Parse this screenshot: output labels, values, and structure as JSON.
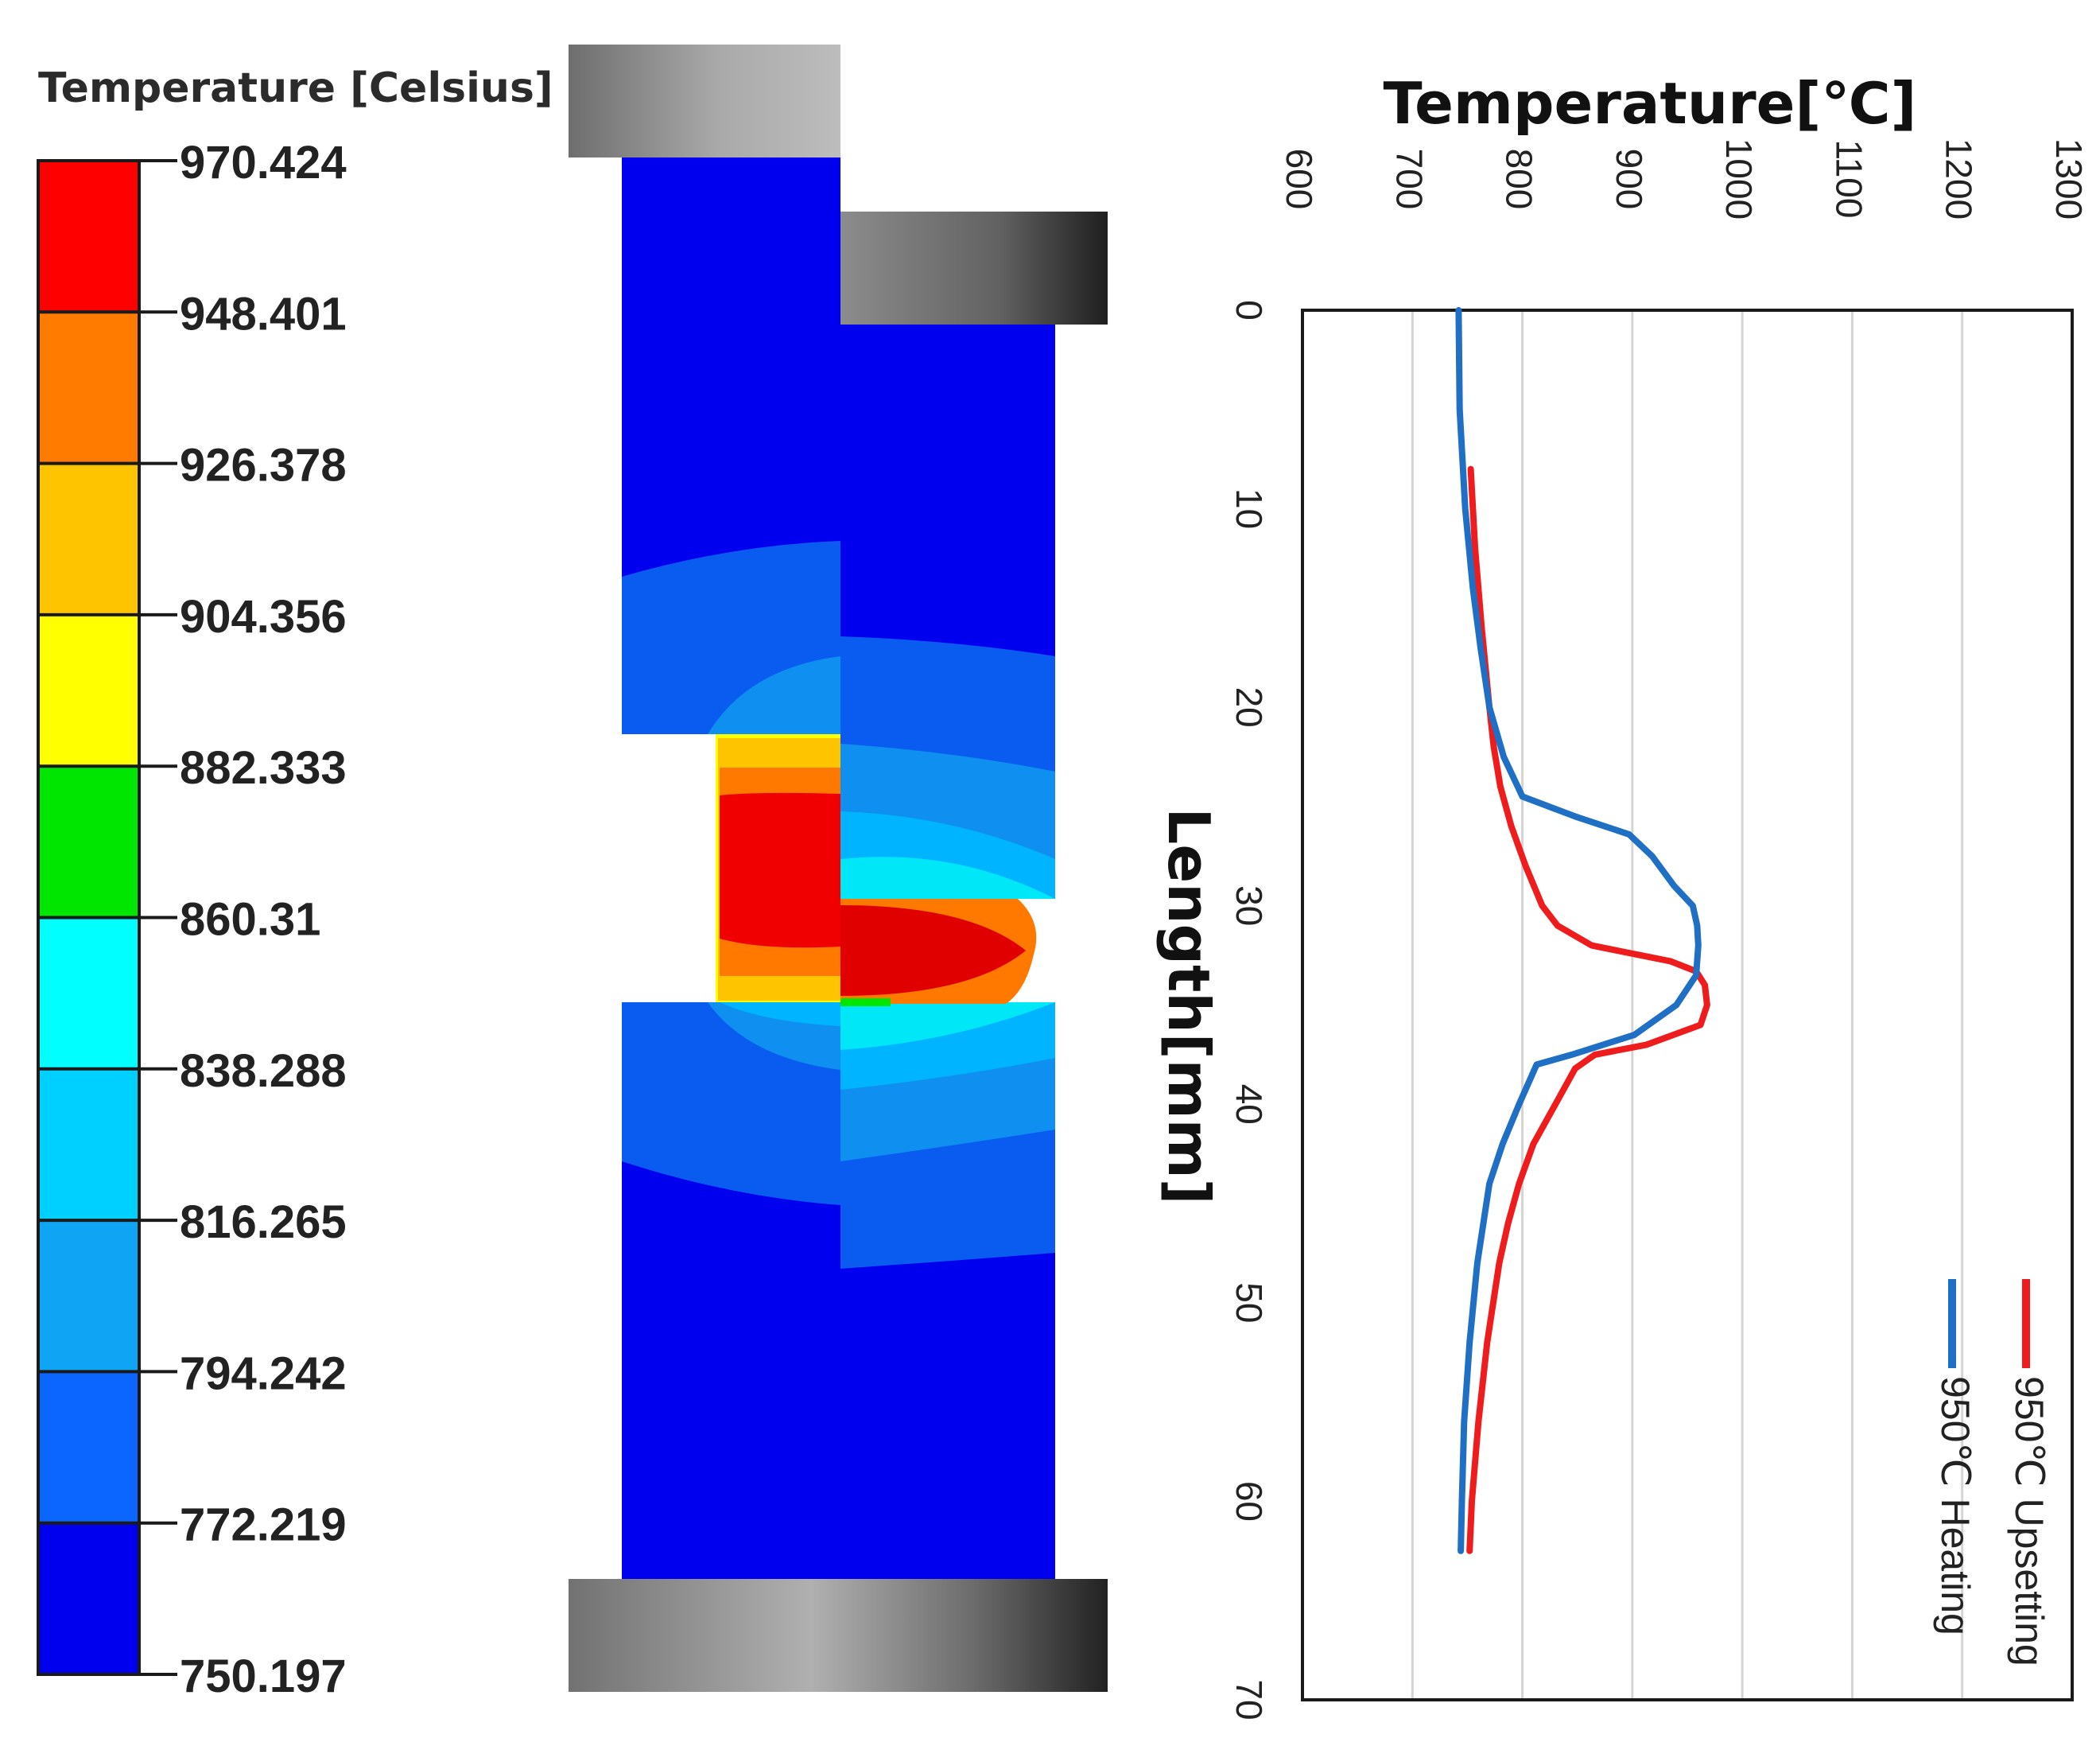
{
  "colorbar": {
    "title": "Temperature [Celsius]",
    "levels": [
      "970.424",
      "948.401",
      "926.378",
      "904.356",
      "882.333",
      "860.31",
      "838.288",
      "816.265",
      "794.242",
      "772.219",
      "750.197"
    ],
    "colors": [
      "#ff0000",
      "#ff7b00",
      "#ffc400",
      "#ffff00",
      "#00e600",
      "#00ffff",
      "#00d0ff",
      "#10a4f5",
      "#0a66ff",
      "#0000ee"
    ]
  },
  "simulation": {
    "colors": {
      "cold": "#0000ee",
      "blue2": "#0a5cf0",
      "blue3": "#0f8ff0",
      "cyan1": "#00b4ff",
      "cyan2": "#00e8f8",
      "yellow": "#ffff00",
      "orange": "#ff7800",
      "orange2": "#ffc400",
      "red": "#f00000"
    }
  },
  "chart_data": {
    "type": "line",
    "title": "Temperature[℃]",
    "temperature_label": "Temperature[℃]",
    "length_label": "Length[mm]",
    "orientation": "rotated 90° clockwise: temperature axis along top, length axis down the left",
    "temperature_ticks": [
      600,
      700,
      800,
      900,
      1000,
      1100,
      1200,
      1300
    ],
    "length_ticks": [
      0,
      10,
      20,
      30,
      40,
      50,
      60,
      70
    ],
    "temperature_range": [
      600,
      1300
    ],
    "length_range": [
      0,
      70
    ],
    "gridlines": "vertical at each temperature tick",
    "legend_position": "bottom-right (rotated)",
    "series": [
      {
        "name": "950℃ Upsetting",
        "color": "#ee1c1c",
        "points": [
          [
            8,
            753
          ],
          [
            12,
            757
          ],
          [
            16,
            763
          ],
          [
            20,
            770
          ],
          [
            22,
            774
          ],
          [
            24,
            780
          ],
          [
            26,
            790
          ],
          [
            28,
            803
          ],
          [
            30,
            818
          ],
          [
            31,
            832
          ],
          [
            32,
            863
          ],
          [
            32.8,
            935
          ],
          [
            33.3,
            958
          ],
          [
            34,
            966
          ],
          [
            35,
            968
          ],
          [
            36,
            962
          ],
          [
            37,
            913
          ],
          [
            37.5,
            866
          ],
          [
            38.2,
            848
          ],
          [
            40,
            830
          ],
          [
            42,
            810
          ],
          [
            44,
            797
          ],
          [
            46,
            787
          ],
          [
            48,
            779
          ],
          [
            52,
            768
          ],
          [
            56,
            760
          ],
          [
            60,
            754
          ],
          [
            62.5,
            752
          ]
        ]
      },
      {
        "name": "950℃ Heating",
        "color": "#1f6fc4",
        "points": [
          [
            0,
            742
          ],
          [
            5,
            743
          ],
          [
            10,
            748
          ],
          [
            14,
            755
          ],
          [
            17,
            762
          ],
          [
            20,
            770
          ],
          [
            22.5,
            783
          ],
          [
            24.5,
            800
          ],
          [
            25.5,
            848
          ],
          [
            26.4,
            897
          ],
          [
            27.5,
            918
          ],
          [
            29,
            938
          ],
          [
            30,
            955
          ],
          [
            31,
            959
          ],
          [
            32,
            960
          ],
          [
            33.5,
            958
          ],
          [
            35,
            940
          ],
          [
            36.5,
            902
          ],
          [
            37.5,
            845
          ],
          [
            38,
            813
          ],
          [
            40,
            797
          ],
          [
            42,
            782
          ],
          [
            44,
            770
          ],
          [
            48,
            759
          ],
          [
            52,
            752
          ],
          [
            56,
            747
          ],
          [
            60,
            745
          ],
          [
            62.5,
            744
          ]
        ]
      }
    ]
  }
}
